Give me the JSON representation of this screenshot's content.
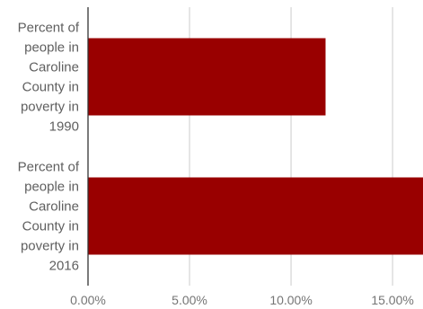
{
  "chart_data": {
    "type": "bar",
    "orientation": "horizontal",
    "title": "",
    "xlabel": "",
    "ylabel": "",
    "categories": [
      "Percent of people in Caroline County in poverty in 1990",
      "Percent of people in Caroline County in poverty in 2016"
    ],
    "category_label_lines": [
      [
        "Percent of",
        "people in",
        "Caroline",
        "County in",
        "poverty in",
        "1990"
      ],
      [
        "Percent of",
        "people in",
        "Caroline",
        "County in",
        "poverty in",
        "2016"
      ]
    ],
    "values": [
      0.117,
      0.165
    ],
    "xlim": [
      0,
      0.165
    ],
    "xticks": [
      0,
      0.05,
      0.1,
      0.15
    ],
    "xtick_labels": [
      "0.00%",
      "5.00%",
      "10.00%",
      "15.00%"
    ],
    "grid": true,
    "legend": "none",
    "bar_color": "#990000"
  }
}
